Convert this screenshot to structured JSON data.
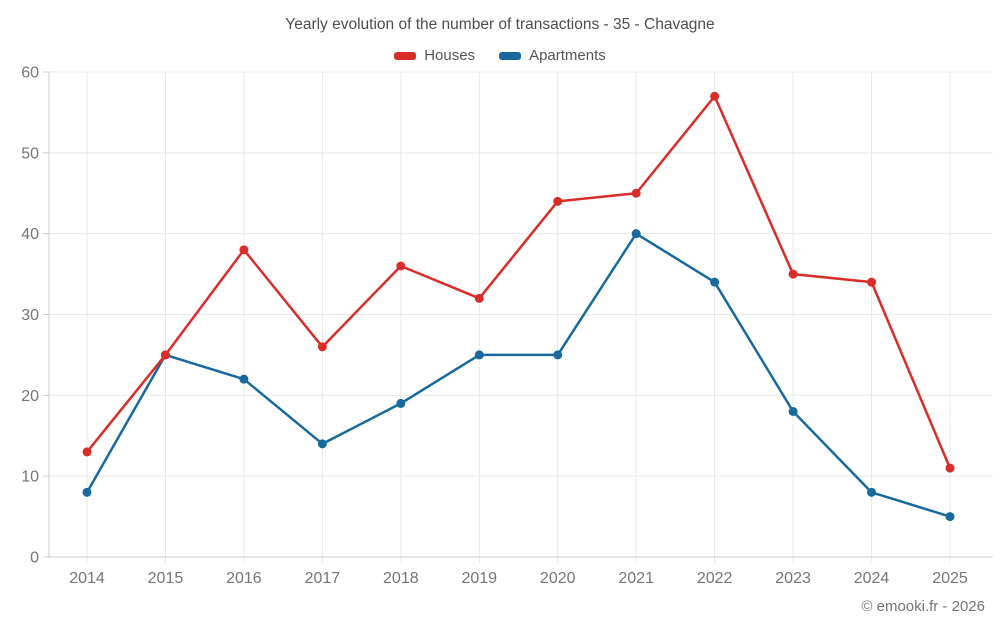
{
  "chart": {
    "title": "Yearly evolution of the number of transactions - 35 - Chavagne",
    "footer": "© emooki.fr - 2026"
  },
  "chart_data": {
    "type": "line",
    "title": "Yearly evolution of the number of transactions - 35 - Chavagne",
    "categories": [
      "2014",
      "2015",
      "2016",
      "2017",
      "2018",
      "2019",
      "2020",
      "2021",
      "2022",
      "2023",
      "2024",
      "2025"
    ],
    "series": [
      {
        "name": "Houses",
        "color": "#d92d2a",
        "values": [
          13,
          25,
          38,
          26,
          36,
          32,
          44,
          45,
          57,
          35,
          34,
          11
        ]
      },
      {
        "name": "Apartments",
        "color": "#17699e",
        "values": [
          8,
          25,
          22,
          14,
          19,
          25,
          25,
          40,
          34,
          18,
          8,
          5
        ]
      }
    ],
    "xlabel": "",
    "ylabel": "",
    "ylim": [
      0,
      60
    ],
    "ytick_step": 10,
    "grid": true,
    "legend_position": "top",
    "markers": true
  }
}
